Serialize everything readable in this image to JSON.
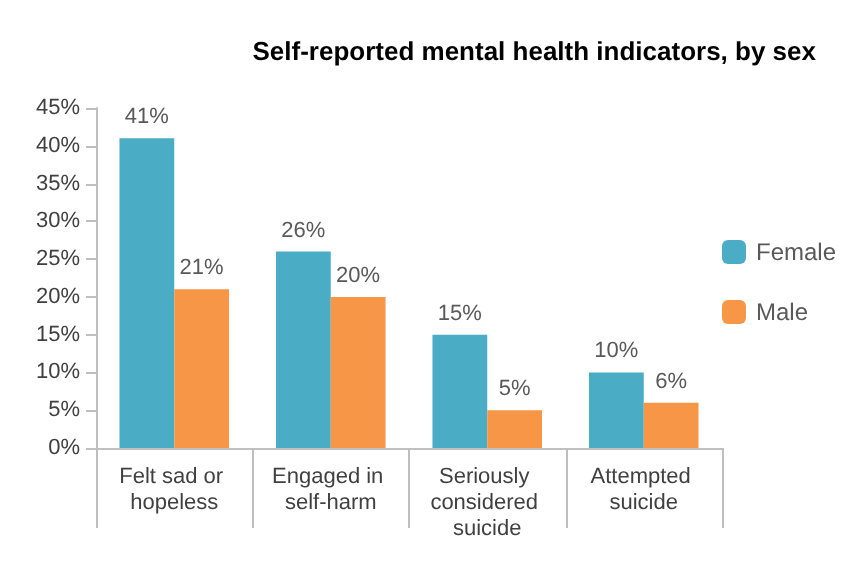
{
  "chart_data": {
    "type": "bar",
    "title": "Self-reported mental health indicators, by sex",
    "categories": [
      "Felt sad or hopeless",
      "Engaged in self-harm",
      "Seriously considered suicide",
      "Attempted suicide"
    ],
    "series": [
      {
        "name": "Female",
        "color": "#4bacc6",
        "values": [
          41,
          26,
          15,
          10
        ],
        "value_labels": [
          "41%",
          "26%",
          "15%",
          "10%"
        ]
      },
      {
        "name": "Male",
        "color": "#f79646",
        "values": [
          21,
          20,
          5,
          6
        ],
        "value_labels": [
          "21%",
          "20%",
          "5%",
          "6%"
        ]
      }
    ],
    "ylim": [
      0,
      45
    ],
    "yticks": [
      {
        "value": 0,
        "label": "0%"
      },
      {
        "value": 5,
        "label": "5%"
      },
      {
        "value": 10,
        "label": "10%"
      },
      {
        "value": 15,
        "label": "15%"
      },
      {
        "value": 20,
        "label": "20%"
      },
      {
        "value": 25,
        "label": "25%"
      },
      {
        "value": 30,
        "label": "30%"
      },
      {
        "value": 35,
        "label": "35%"
      },
      {
        "value": 40,
        "label": "40%"
      },
      {
        "value": 45,
        "label": "45%"
      }
    ],
    "grid": false,
    "legend": "right"
  }
}
